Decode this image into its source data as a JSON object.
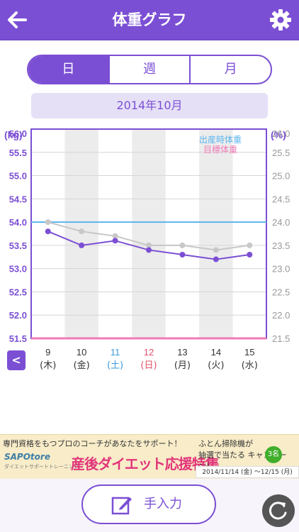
{
  "header": {
    "title": "体重グラフ"
  },
  "tabs": [
    {
      "label": "日",
      "active": true
    },
    {
      "label": "週",
      "active": false
    },
    {
      "label": "月",
      "active": false
    }
  ],
  "month": "2014年10月",
  "chart_data": {
    "type": "line",
    "left_unit": "(kg)",
    "right_unit": "(%)",
    "left_ticks": [
      "56.0",
      "55.5",
      "55.0",
      "54.5",
      "54.0",
      "53.5",
      "53.0",
      "52.5",
      "52.0",
      "51.5"
    ],
    "right_ticks": [
      "26.0",
      "25.5",
      "25.0",
      "24.5",
      "24.0",
      "23.5",
      "23.0",
      "22.5",
      "22.0",
      "21.5"
    ],
    "ylim_left": [
      51.5,
      56.0
    ],
    "ylim_right": [
      21.5,
      26.0
    ],
    "legend": [
      {
        "label": "出産時体重",
        "color": "#5ab4ee"
      },
      {
        "label": "目標体重",
        "color": "#f07bb8"
      }
    ],
    "days": [
      {
        "date": "9",
        "dow": "(木)",
        "color": "#333333"
      },
      {
        "date": "10",
        "dow": "(金)",
        "color": "#333333"
      },
      {
        "date": "11",
        "dow": "(土)",
        "color": "#3a9ad9"
      },
      {
        "date": "12",
        "dow": "(日)",
        "color": "#e0506a"
      },
      {
        "date": "13",
        "dow": "(月)",
        "color": "#333333"
      },
      {
        "date": "14",
        "dow": "(火)",
        "color": "#333333"
      },
      {
        "date": "15",
        "dow": "(水)",
        "color": "#333333"
      }
    ],
    "weight_kg": [
      53.8,
      53.5,
      53.6,
      53.4,
      53.3,
      53.2,
      53.3
    ],
    "body_fat_pct": [
      24.0,
      23.8,
      23.7,
      23.5,
      23.5,
      23.4,
      23.5
    ],
    "birth_weight_kg": 54.0,
    "target_weight_kg": 51.5,
    "series_colors": {
      "weight": "#7b4fd4",
      "body_fat": "#c8c8c8"
    }
  },
  "nav": {
    "prev": "<"
  },
  "banner": {
    "top_text": "専門資格をもつプロのコーチがあなたをサポート！",
    "logo": "SAPOtore",
    "logo_sub": "ダイエットサポートトレーニング",
    "main_text": "産後ダイエット応援特集",
    "right_text1": "ふとん掃除機が",
    "right_text2": "抽選で当たる キャンペーン！",
    "badge": "3名",
    "date_range": "2014/11/14 (金) 〜12/15 (月)"
  },
  "bottom": {
    "manual_label": "手入力"
  },
  "colors": {
    "accent": "#7b4fd4",
    "light": "#e6e0f7"
  }
}
